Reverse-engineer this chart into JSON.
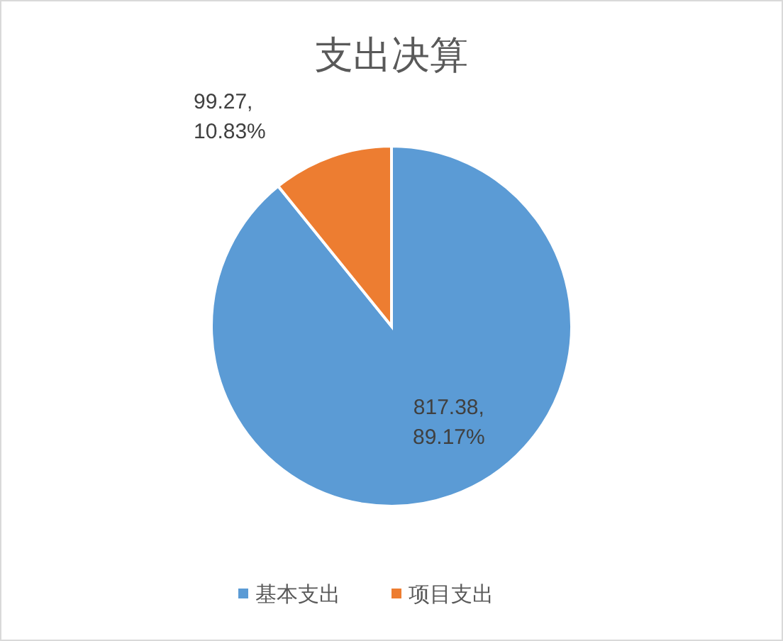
{
  "chart_data": {
    "type": "pie",
    "title": "支出决算",
    "categories": [
      "基本支出",
      "项目支出"
    ],
    "values": [
      817.38,
      99.27
    ],
    "colors": [
      "#5b9bd5",
      "#ed7d31"
    ],
    "value_labels": [
      "817.38,\n89.17%",
      "99.27,\n10.83%"
    ],
    "legend": "bottom"
  }
}
